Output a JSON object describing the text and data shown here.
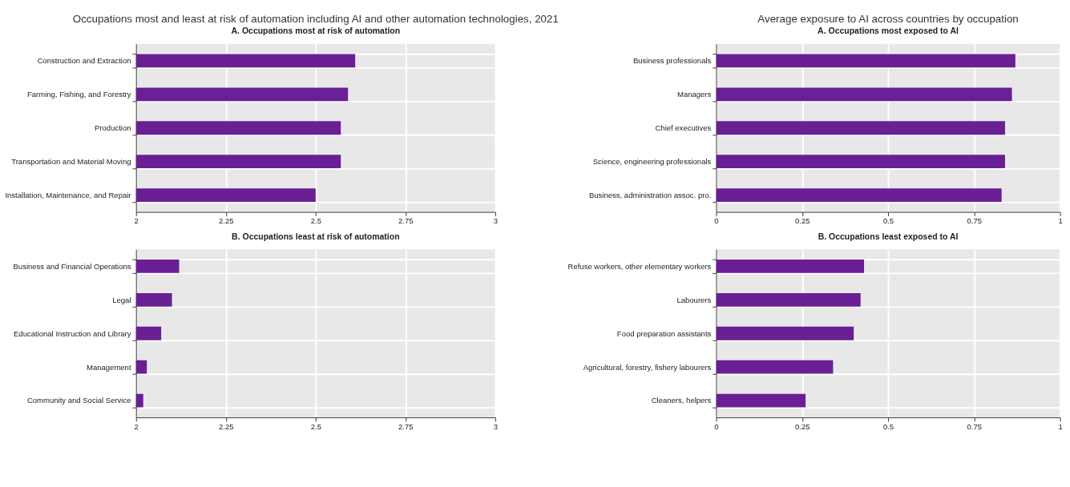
{
  "chart_data": [
    {
      "type": "bar",
      "orientation": "horizontal",
      "title": "Occupations most and least at risk of automation including AI and other automation technologies, 2021",
      "subtitle": "A. Occupations most at risk of automation",
      "categories": [
        "Construction and Extraction",
        "Farming, Fishing, and Forestry",
        "Production",
        "Transportation and Material Moving",
        "Installation, Maintenance, and Repair"
      ],
      "values": [
        2.61,
        2.59,
        2.57,
        2.57,
        2.5
      ],
      "color": "#6a1f94",
      "xlim": [
        2,
        3
      ],
      "xticks": [
        2,
        2.25,
        2.5,
        2.75,
        3
      ],
      "grid": true
    },
    {
      "type": "bar",
      "orientation": "horizontal",
      "title": "B. Occupations least at risk of automation",
      "categories": [
        "Business and Financial Operations",
        "Legal",
        "Educational Instruction and Library",
        "Management",
        "Community and Social Service"
      ],
      "values": [
        2.12,
        2.1,
        2.07,
        2.03,
        2.02
      ],
      "color": "#6a1f94",
      "xlim": [
        2,
        3
      ],
      "xticks": [
        2,
        2.25,
        2.5,
        2.75,
        3
      ],
      "grid": true
    },
    {
      "type": "bar",
      "orientation": "horizontal",
      "title": "Average exposure to AI across countries by occupation",
      "subtitle": "A. Occupations most exposed to AI",
      "categories": [
        "Business professionals",
        "Managers",
        "Chief executives",
        "Science, engineering professionals",
        "Business, administration assoc. pro."
      ],
      "values": [
        0.87,
        0.86,
        0.84,
        0.84,
        0.83
      ],
      "color": "#6a1f94",
      "xlim": [
        0,
        1
      ],
      "xticks": [
        0,
        0.25,
        0.5,
        0.75,
        1
      ],
      "grid": true
    },
    {
      "type": "bar",
      "orientation": "horizontal",
      "title": "B. Occupations least exposed to AI",
      "categories": [
        "Refuse workers, other elementary workers",
        "Labourers",
        "Food preparation assistants",
        "Agricultural, forestry, fishery labourers",
        "Cleaners, helpers"
      ],
      "values": [
        0.43,
        0.42,
        0.4,
        0.34,
        0.26
      ],
      "color": "#6a1f94",
      "xlim": [
        0,
        1
      ],
      "xticks": [
        0,
        0.25,
        0.5,
        0.75,
        1
      ],
      "grid": true
    }
  ]
}
